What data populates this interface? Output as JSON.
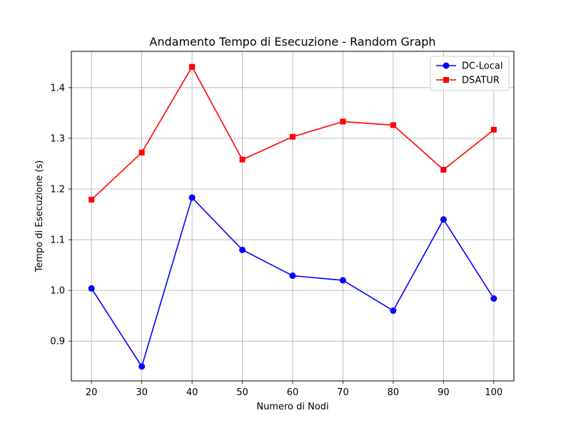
{
  "chart_data": {
    "type": "line",
    "title": "Andamento Tempo di Esecuzione - Random Graph",
    "xlabel": "Numero di Nodi",
    "ylabel": "Tempo di Esecuzione (s)",
    "x": [
      20,
      30,
      40,
      50,
      60,
      70,
      80,
      90,
      100
    ],
    "xticks": [
      "20",
      "30",
      "40",
      "50",
      "60",
      "70",
      "80",
      "90",
      "100"
    ],
    "yticks": [
      "0.9",
      "1.0",
      "1.1",
      "1.2",
      "1.3",
      "1.4"
    ],
    "xlim": [
      16,
      104
    ],
    "ylim": [
      0.8215,
      1.4715
    ],
    "grid": true,
    "legend_position": "top-right",
    "series": [
      {
        "name": "DC-Local",
        "color": "#0000ff",
        "marker": "circle",
        "values": [
          1.004,
          0.85,
          1.183,
          1.08,
          1.029,
          1.02,
          0.96,
          1.14,
          0.984
        ]
      },
      {
        "name": "DSATUR",
        "color": "#ff0000",
        "marker": "square",
        "values": [
          1.179,
          1.272,
          1.441,
          1.258,
          1.303,
          1.333,
          1.326,
          1.238,
          1.317
        ]
      }
    ]
  }
}
